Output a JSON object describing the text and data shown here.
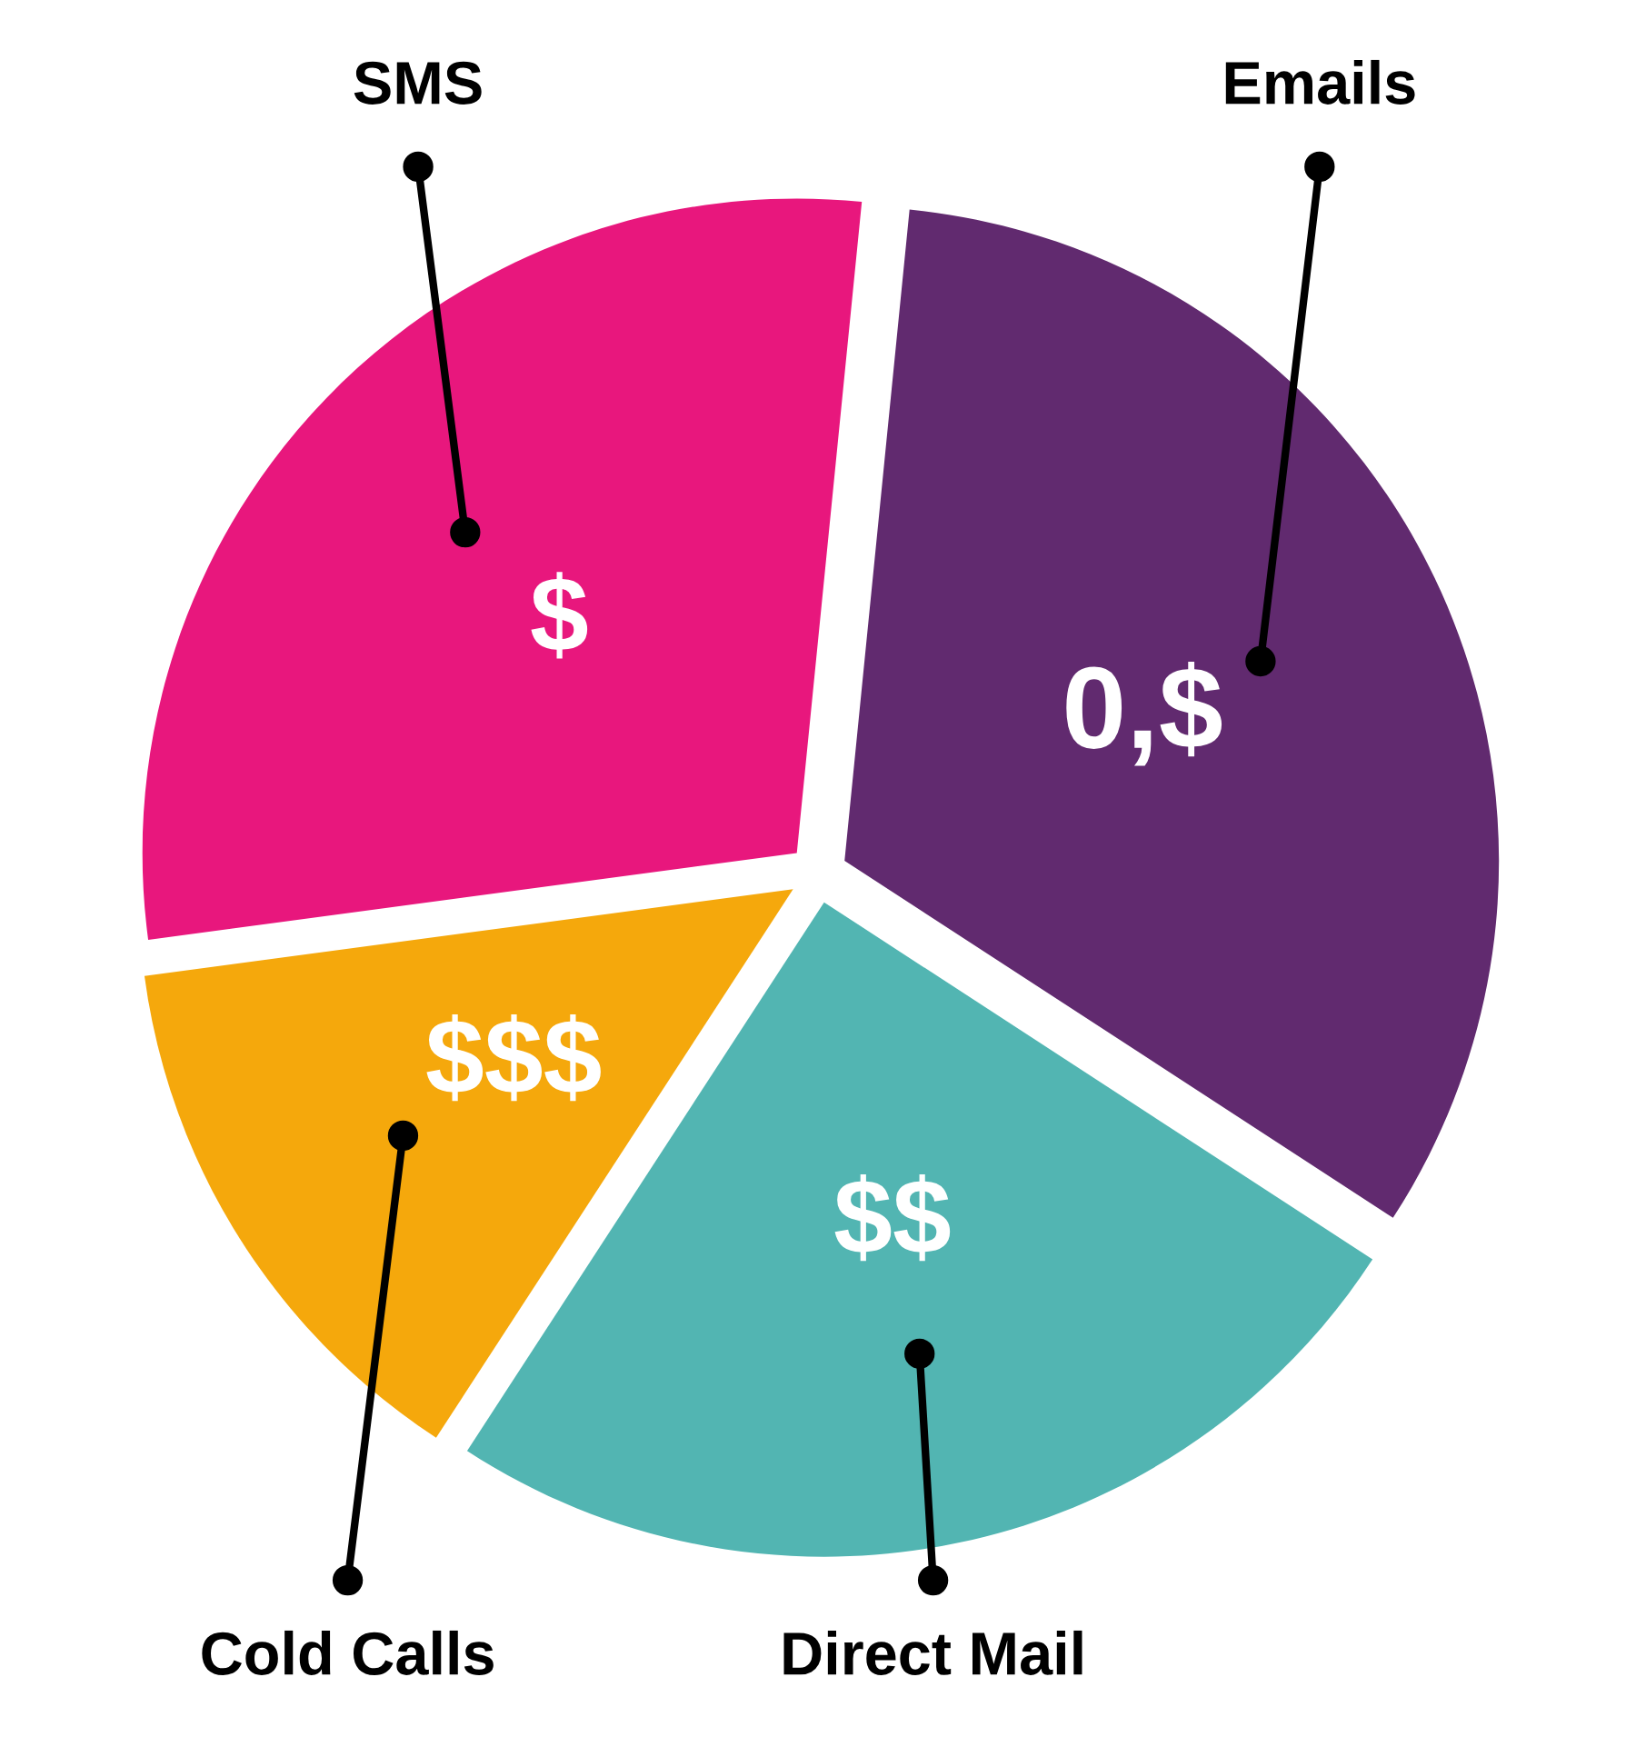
{
  "chart_data": {
    "type": "pie",
    "categories": [
      "Emails",
      "Direct Mail",
      "Cold Calls",
      "SMS"
    ],
    "values": [
      32.6,
      25,
      13.7,
      28.7
    ],
    "colors": [
      "#612a6f",
      "#52b5b2",
      "#f5a80c",
      "#e8177d"
    ],
    "annotations": [
      "0,$",
      "$$",
      "$$$",
      "$"
    ]
  }
}
